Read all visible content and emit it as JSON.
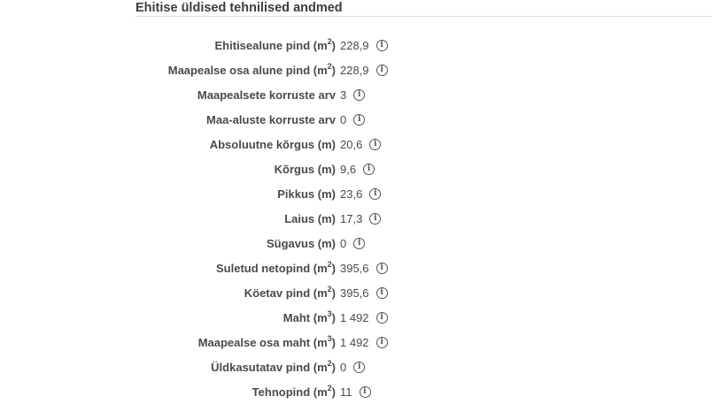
{
  "section": {
    "title": "Ehitise üldised tehnilised andmed"
  },
  "info_icon": "info-circle-icon",
  "rows": [
    {
      "label": "Ehitisealune pind (m",
      "exp": "2",
      "value": "228,9"
    },
    {
      "label": "Maapealse osa alune pind (m",
      "exp": "2",
      "value": "228,9"
    },
    {
      "label": "Maapealsete korruste arv",
      "exp": "",
      "value": "3"
    },
    {
      "label": "Maa-aluste korruste arv",
      "exp": "",
      "value": "0"
    },
    {
      "label": "Absoluutne kõrgus (m)",
      "exp": "",
      "value": "20,6"
    },
    {
      "label": "Kõrgus (m)",
      "exp": "",
      "value": "9,6"
    },
    {
      "label": "Pikkus (m)",
      "exp": "",
      "value": "23,6"
    },
    {
      "label": "Laius (m)",
      "exp": "",
      "value": "17,3"
    },
    {
      "label": "Sügavus (m)",
      "exp": "",
      "value": "0"
    },
    {
      "label": "Suletud netopind (m",
      "exp": "2",
      "value": "395,6"
    },
    {
      "label": "Köetav pind (m",
      "exp": "2",
      "value": "395,6"
    },
    {
      "label": "Maht (m",
      "exp": "3",
      "value": "1 492"
    },
    {
      "label": "Maapealse osa maht (m",
      "exp": "3",
      "value": "1 492"
    },
    {
      "label": "Üldkasutatav pind (m",
      "exp": "2",
      "value": "0"
    },
    {
      "label": "Tehnopind (m",
      "exp": "2",
      "value": "11"
    }
  ]
}
